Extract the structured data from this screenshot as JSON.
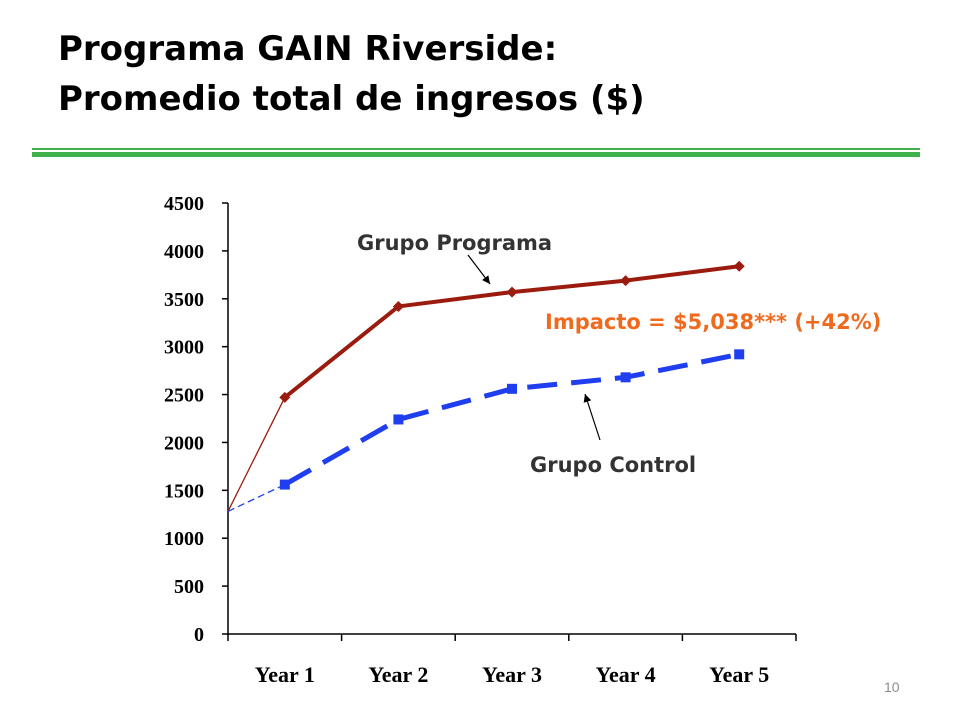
{
  "slide": {
    "title_line1": "Programa GAIN Riverside:",
    "title_line2": "Promedio total de ingresos ($)",
    "page_number": "10"
  },
  "colors": {
    "rule": "#3fb14a",
    "programa": "#9b1c0e",
    "control": "#1e3ef0",
    "impact": "#f06a1e",
    "axis": "#000000"
  },
  "annotations": {
    "programa_label": "Grupo Programa",
    "control_label": "Grupo Control",
    "impact": "Impacto = $5,038*** (+42%)"
  },
  "chart_data": {
    "type": "line",
    "title": "",
    "xlabel": "",
    "ylabel": "",
    "ylim": [
      0,
      4500
    ],
    "yticks": [
      0,
      500,
      1000,
      1500,
      2000,
      2500,
      3000,
      3500,
      4000,
      4500
    ],
    "categories": [
      "Year 1",
      "Year 2",
      "Year 3",
      "Year 4",
      "Year 5"
    ],
    "start_value": 1280,
    "legend": "none",
    "grid": false,
    "series": [
      {
        "name": "Grupo Programa",
        "values": [
          2470,
          3420,
          3570,
          3690,
          3840
        ],
        "color": "#9b1c0e",
        "marker": "diamond",
        "style": "solid"
      },
      {
        "name": "Grupo Control",
        "values": [
          1560,
          2240,
          2560,
          2680,
          2920
        ],
        "color": "#1e3ef0",
        "marker": "square",
        "style": "dashed"
      }
    ]
  }
}
